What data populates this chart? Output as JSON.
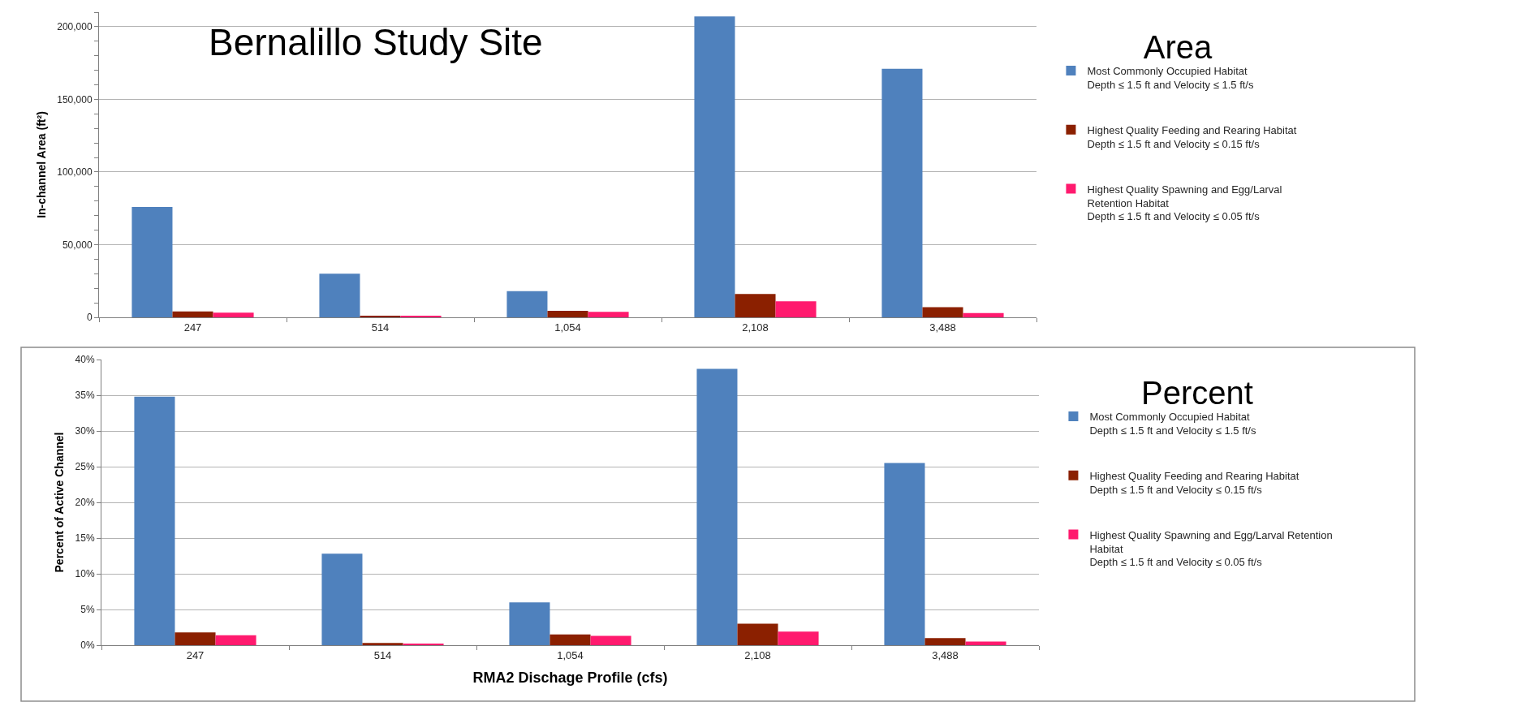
{
  "chart_data": [
    {
      "type": "bar",
      "title": "Bernalillo Study Site",
      "legend_title": "Area",
      "ylabel": "In-channel Area (ft²)",
      "categories": [
        "247",
        "514",
        "1,054",
        "2,108",
        "3,488"
      ],
      "series": [
        {
          "name": "Most Commonly Occupied Habitat\nDepth ≤ 1.5 ft and Velocity ≤ 1.5 ft/s",
          "color": "#4f81bd",
          "values": [
            76000,
            30000,
            18000,
            207000,
            171000
          ]
        },
        {
          "name": "Highest Quality Feeding and Rearing Habitat\nDepth ≤ 1.5 ft and Velocity ≤ 0.15 ft/s",
          "color": "#8b2000",
          "values": [
            4000,
            1000,
            4500,
            16000,
            7000
          ]
        },
        {
          "name": "Highest Quality Spawning and Egg/Larval\nRetention Habitat\nDepth ≤ 1.5 ft and Velocity ≤ 0.05 ft/s",
          "color": "#ff1a6e",
          "values": [
            3200,
            600,
            3800,
            11000,
            3000
          ]
        }
      ],
      "ylim": [
        0,
        210000
      ],
      "yticks": [
        0,
        {
          "value": 10000,
          "label": null
        },
        {
          "value": 20000,
          "label": null
        },
        {
          "value": 30000,
          "label": null
        },
        {
          "value": 40000,
          "label": null
        },
        {
          "value": 50000,
          "label": "50,000"
        },
        {
          "value": 60000,
          "label": null
        },
        {
          "value": 70000,
          "label": null
        },
        {
          "value": 80000,
          "label": null
        },
        {
          "value": 90000,
          "label": null
        },
        {
          "value": 100000,
          "label": "100,000"
        },
        {
          "value": 110000,
          "label": null
        },
        {
          "value": 120000,
          "label": null
        },
        {
          "value": 130000,
          "label": null
        },
        {
          "value": 140000,
          "label": null
        },
        {
          "value": 150000,
          "label": "150,000"
        },
        {
          "value": 160000,
          "label": null
        },
        {
          "value": 170000,
          "label": null
        },
        {
          "value": 180000,
          "label": null
        },
        {
          "value": 190000,
          "label": null
        },
        {
          "value": 200000,
          "label": "200,000"
        },
        {
          "value": 210000,
          "label": null
        }
      ],
      "grid": "y",
      "legend": "right"
    },
    {
      "type": "bar",
      "legend_title": "Percent",
      "xlabel": "RMA2 Dischage Profile (cfs)",
      "ylabel": "Percent of Active Channel",
      "categories": [
        "247",
        "514",
        "1,054",
        "2,108",
        "3,488"
      ],
      "series": [
        {
          "name": "Most Commonly Occupied Habitat\nDepth ≤ 1.5 ft and Velocity ≤ 1.5 ft/s",
          "color": "#4f81bd",
          "values": [
            34.8,
            12.8,
            6.0,
            38.7,
            25.5
          ]
        },
        {
          "name": "Highest Quality Feeding and Rearing Habitat\nDepth ≤ 1.5 ft and Velocity ≤ 0.15 ft/s",
          "color": "#8b2000",
          "values": [
            1.8,
            0.3,
            1.5,
            3.0,
            1.0
          ]
        },
        {
          "name": "Highest Quality Spawning and Egg/Larval Retention\nHabitat\nDepth ≤ 1.5 ft and Velocity ≤ 0.05 ft/s",
          "color": "#ff1a6e",
          "values": [
            1.4,
            0.2,
            1.3,
            1.9,
            0.5
          ]
        }
      ],
      "ylim": [
        0,
        40
      ],
      "yticks": [
        {
          "value": 0,
          "label": "0%"
        },
        {
          "value": 5,
          "label": "5%"
        },
        {
          "value": 10,
          "label": "10%"
        },
        {
          "value": 15,
          "label": "15%"
        },
        {
          "value": 20,
          "label": "20%"
        },
        {
          "value": 25,
          "label": "25%"
        },
        {
          "value": 30,
          "label": "30%"
        },
        {
          "value": 35,
          "label": "35%"
        },
        {
          "value": 40,
          "label": "40%"
        }
      ],
      "grid": "y",
      "legend": "right"
    }
  ]
}
